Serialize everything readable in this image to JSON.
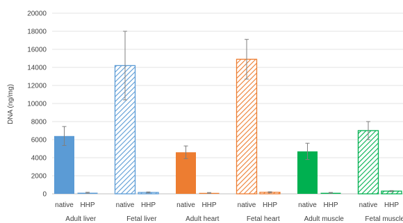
{
  "chart_data": {
    "type": "bar",
    "ylabel": "DNA (ng/mg)",
    "ylim": [
      0,
      20000
    ],
    "yticks": [
      0,
      2000,
      4000,
      6000,
      8000,
      10000,
      12000,
      14000,
      16000,
      18000,
      20000
    ],
    "grid": true,
    "treatments": [
      "native",
      "HHP"
    ],
    "groups": [
      {
        "label": "Adult liver",
        "color": "#5b9bd5",
        "fill": "solid",
        "values": [
          6400,
          120
        ],
        "errors": [
          1050,
          50
        ]
      },
      {
        "label": "Fetal liver",
        "color": "#5b9bd5",
        "fill": "hatch",
        "values": [
          14200,
          150
        ],
        "errors": [
          3800,
          60
        ]
      },
      {
        "label": "Adult heart",
        "color": "#ed7d31",
        "fill": "solid",
        "values": [
          4600,
          100
        ],
        "errors": [
          700,
          40
        ]
      },
      {
        "label": "Fetal heart",
        "color": "#ed7d31",
        "fill": "hatch",
        "values": [
          14900,
          170
        ],
        "errors": [
          2200,
          60
        ]
      },
      {
        "label": "Adult muscle",
        "color": "#00b050",
        "fill": "solid",
        "values": [
          4700,
          110
        ],
        "errors": [
          900,
          40
        ]
      },
      {
        "label": "Fetal muscle",
        "color": "#00b050",
        "fill": "hatch",
        "values": [
          7000,
          300
        ],
        "errors": [
          1000,
          60
        ]
      }
    ]
  }
}
